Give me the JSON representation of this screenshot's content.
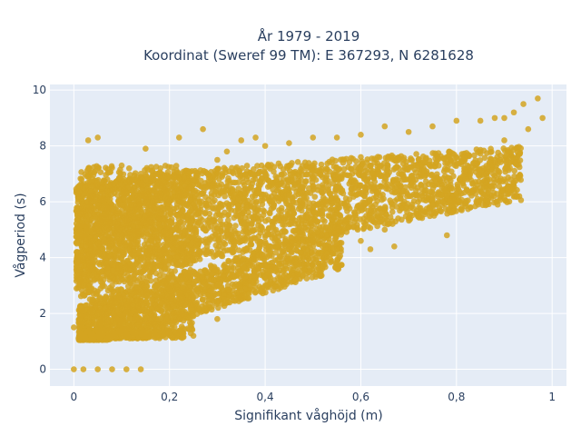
{
  "chart_data": {
    "type": "scatter",
    "title_line1": "År 1979 - 2019",
    "title_line2": "Koordinat (Sweref 99 TM): E 367293, N 6281628",
    "xlabel": "Signifikant våghöjd (m)",
    "ylabel": "Vågperiod (s)",
    "xlim": [
      -0.05,
      1.03
    ],
    "ylim": [
      -0.6,
      10.2
    ],
    "xticks": [
      0,
      0.2,
      0.4,
      0.6,
      0.8,
      1
    ],
    "xtick_labels": [
      "0",
      "0,2",
      "0,4",
      "0,6",
      "0,8",
      "1"
    ],
    "yticks": [
      0,
      2,
      4,
      6,
      8,
      10
    ],
    "ytick_labels": [
      "0",
      "2",
      "4",
      "6",
      "8",
      "10"
    ],
    "marker_color": "#d4a421",
    "plot_bg": "#e5ecf6",
    "grid": true,
    "points": [
      [
        0.0,
        0.0
      ],
      [
        0.02,
        0.0
      ],
      [
        0.05,
        0.0
      ],
      [
        0.08,
        0.0
      ],
      [
        0.11,
        0.0
      ],
      [
        0.14,
        0.0
      ],
      [
        0.0,
        1.5
      ],
      [
        0.01,
        1.1
      ],
      [
        0.02,
        3.0
      ],
      [
        0.03,
        5.5
      ],
      [
        0.03,
        8.2
      ],
      [
        0.05,
        8.3
      ],
      [
        0.04,
        6.2
      ],
      [
        0.06,
        6.5
      ],
      [
        0.05,
        4.5
      ],
      [
        0.05,
        2.0
      ],
      [
        0.08,
        6.4
      ],
      [
        0.1,
        7.3
      ],
      [
        0.15,
        7.9
      ],
      [
        0.22,
        8.3
      ],
      [
        0.27,
        8.6
      ],
      [
        0.3,
        7.5
      ],
      [
        0.32,
        7.8
      ],
      [
        0.35,
        8.2
      ],
      [
        0.38,
        8.3
      ],
      [
        0.4,
        8.0
      ],
      [
        0.45,
        8.1
      ],
      [
        0.5,
        8.3
      ],
      [
        0.55,
        8.3
      ],
      [
        0.6,
        8.4
      ],
      [
        0.65,
        8.7
      ],
      [
        0.7,
        8.5
      ],
      [
        0.75,
        8.7
      ],
      [
        0.8,
        8.9
      ],
      [
        0.85,
        8.9
      ],
      [
        0.88,
        9.0
      ],
      [
        0.9,
        9.0
      ],
      [
        0.92,
        9.2
      ],
      [
        0.94,
        9.5
      ],
      [
        0.97,
        9.7
      ],
      [
        0.98,
        9.0
      ],
      [
        0.1,
        1.2
      ],
      [
        0.15,
        1.2
      ],
      [
        0.2,
        1.3
      ],
      [
        0.25,
        1.9
      ],
      [
        0.3,
        2.4
      ],
      [
        0.35,
        2.8
      ],
      [
        0.4,
        3.3
      ],
      [
        0.45,
        3.8
      ],
      [
        0.5,
        4.1
      ],
      [
        0.55,
        4.3
      ],
      [
        0.6,
        4.6
      ],
      [
        0.65,
        5.0
      ],
      [
        0.7,
        5.4
      ],
      [
        0.75,
        5.9
      ],
      [
        0.8,
        6.3
      ],
      [
        0.85,
        6.5
      ],
      [
        0.9,
        6.8
      ],
      [
        0.92,
        6.7
      ],
      [
        0.78,
        4.8
      ],
      [
        0.67,
        4.4
      ],
      [
        0.62,
        4.3
      ],
      [
        0.28,
        4.2
      ],
      [
        0.2,
        4.0
      ],
      [
        0.15,
        3.6
      ],
      [
        0.25,
        1.2
      ],
      [
        0.3,
        1.8
      ],
      [
        0.35,
        2.5
      ],
      [
        0.4,
        3.0
      ],
      [
        0.5,
        3.7
      ],
      [
        0.6,
        5.8
      ],
      [
        0.7,
        6.8
      ],
      [
        0.8,
        7.6
      ],
      [
        0.9,
        8.2
      ],
      [
        0.95,
        8.6
      ],
      [
        0.2,
        6.0
      ],
      [
        0.3,
        6.6
      ],
      [
        0.4,
        7.0
      ],
      [
        0.5,
        7.3
      ],
      [
        0.6,
        7.6
      ],
      [
        0.1,
        4.8
      ],
      [
        0.15,
        5.5
      ],
      [
        0.2,
        2.8
      ],
      [
        0.25,
        3.5
      ],
      [
        0.3,
        3.0
      ],
      [
        0.08,
        3.0
      ],
      [
        0.12,
        2.0
      ],
      [
        0.18,
        1.5
      ]
    ]
  }
}
